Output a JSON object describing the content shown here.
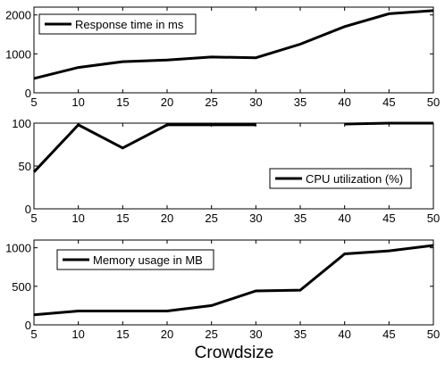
{
  "figure": {
    "xlabel": "Crowdsize"
  },
  "chart_data": [
    {
      "type": "line",
      "x": [
        5,
        10,
        15,
        20,
        25,
        30,
        35,
        40,
        45,
        50
      ],
      "series": [
        {
          "name": "Response time in ms",
          "values": [
            370,
            650,
            800,
            840,
            920,
            900,
            1250,
            1700,
            2030,
            2110
          ],
          "color": "#000000"
        }
      ],
      "xlim": [
        5,
        50
      ],
      "ylim": [
        0,
        2200
      ],
      "xticks": [
        5,
        10,
        15,
        20,
        25,
        30,
        35,
        40,
        45,
        50
      ],
      "yticks": [
        0,
        1000,
        2000
      ],
      "legend": "top-left",
      "grid": false
    },
    {
      "type": "line",
      "x": [
        5,
        10,
        15,
        20,
        25,
        30,
        35,
        40,
        45,
        50
      ],
      "series": [
        {
          "name": "CPU utilization (%)",
          "values": [
            43,
            98,
            71,
            98,
            98,
            98,
            null,
            99,
            100,
            100
          ],
          "color": "#000000"
        }
      ],
      "xlim": [
        5,
        50
      ],
      "ylim": [
        0,
        100
      ],
      "xticks": [
        5,
        10,
        15,
        20,
        25,
        30,
        35,
        40,
        45,
        50
      ],
      "yticks": [
        0,
        50,
        100
      ],
      "legend": "bottom-right",
      "grid": false
    },
    {
      "type": "line",
      "x": [
        5,
        10,
        15,
        20,
        25,
        30,
        35,
        40,
        45,
        50
      ],
      "series": [
        {
          "name": "Memory usage in MB",
          "values": [
            130,
            180,
            180,
            180,
            250,
            440,
            450,
            920,
            960,
            1030
          ],
          "color": "#000000"
        }
      ],
      "xlim": [
        5,
        50
      ],
      "ylim": [
        0,
        1100
      ],
      "xticks": [
        5,
        10,
        15,
        20,
        25,
        30,
        35,
        40,
        45,
        50
      ],
      "yticks": [
        0,
        500,
        1000
      ],
      "legend": "top-left",
      "grid": false
    }
  ]
}
